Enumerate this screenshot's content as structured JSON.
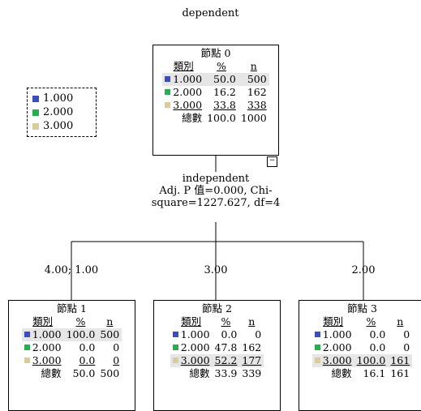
{
  "title": "dependent",
  "legend": [
    {
      "label": "1.000",
      "color": "#3a4ec0"
    },
    {
      "label": "2.000",
      "color": "#22b14c"
    },
    {
      "label": "3.000",
      "color": "#d8cc9a"
    }
  ],
  "root": {
    "title": "節點 0",
    "headers": {
      "cat": "類別",
      "pct": "%",
      "n": "n"
    },
    "rows": [
      {
        "cat": "1.000",
        "pct": "50.0",
        "n": "500"
      },
      {
        "cat": "2.000",
        "pct": "16.2",
        "n": "162"
      },
      {
        "cat": "3.000",
        "pct": "33.8",
        "n": "338"
      }
    ],
    "total": {
      "label": "總數",
      "pct": "100.0",
      "n": "1000"
    },
    "collapse": "−"
  },
  "split": {
    "variable": "independent",
    "stats_line1": "Adj. P 值=0.000, Chi-",
    "stats_line2": "square=1227.627, df=4"
  },
  "branches": [
    "4.00; 1.00",
    "3.00",
    "2.00"
  ],
  "children": [
    {
      "title": "節點 1",
      "headers": {
        "cat": "類別",
        "pct": "%",
        "n": "n"
      },
      "rows": [
        {
          "cat": "1.000",
          "pct": "100.0",
          "n": "500"
        },
        {
          "cat": "2.000",
          "pct": "0.0",
          "n": "0"
        },
        {
          "cat": "3.000",
          "pct": "0.0",
          "n": "0"
        }
      ],
      "total": {
        "label": "總數",
        "pct": "50.0",
        "n": "500"
      }
    },
    {
      "title": "節點 2",
      "headers": {
        "cat": "類別",
        "pct": "%",
        "n": "n"
      },
      "rows": [
        {
          "cat": "1.000",
          "pct": "0.0",
          "n": "0"
        },
        {
          "cat": "2.000",
          "pct": "47.8",
          "n": "162"
        },
        {
          "cat": "3.000",
          "pct": "52.2",
          "n": "177"
        }
      ],
      "total": {
        "label": "總數",
        "pct": "33.9",
        "n": "339"
      }
    },
    {
      "title": "節點 3",
      "headers": {
        "cat": "類別",
        "pct": "%",
        "n": "n"
      },
      "rows": [
        {
          "cat": "1.000",
          "pct": "0.0",
          "n": "0"
        },
        {
          "cat": "2.000",
          "pct": "0.0",
          "n": "0"
        },
        {
          "cat": "3.000",
          "pct": "100.0",
          "n": "161"
        }
      ],
      "total": {
        "label": "總數",
        "pct": "16.1",
        "n": "161"
      }
    }
  ]
}
